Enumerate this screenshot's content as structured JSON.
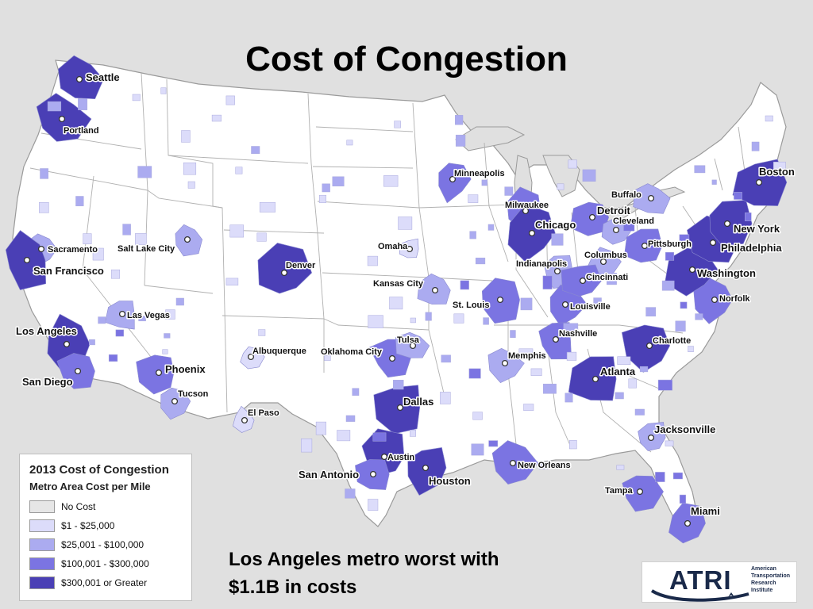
{
  "slide": {
    "title": "Cost of Congestion"
  },
  "caption": {
    "line1": "Los Angeles metro worst with",
    "line2": "$1.1B in costs"
  },
  "legend": {
    "title": "2013 Cost of Congestion",
    "subtitle": "Metro Area Cost per Mile",
    "items": [
      {
        "label": "No Cost",
        "color": "#e6e6e6"
      },
      {
        "label": "$1 - $25,000",
        "color": "#dcdcfa"
      },
      {
        "label": "$25,001 - $100,000",
        "color": "#ababf0"
      },
      {
        "label": "$100,001 - $300,000",
        "color": "#7b74e2"
      },
      {
        "label": "$300,001 or Greater",
        "color": "#4a3fb5"
      }
    ]
  },
  "logo": {
    "text": "ATRI",
    "lines": [
      "American",
      "Transportation",
      "Research",
      "Institute"
    ]
  },
  "cities": [
    {
      "name": "Seattle",
      "tier": 4
    },
    {
      "name": "Portland",
      "tier": 4
    },
    {
      "name": "Sacramento",
      "tier": 2
    },
    {
      "name": "San Francisco",
      "tier": 4
    },
    {
      "name": "Los Angeles",
      "tier": 4
    },
    {
      "name": "San Diego",
      "tier": 3
    },
    {
      "name": "Las Vegas",
      "tier": 2
    },
    {
      "name": "Salt Lake City",
      "tier": 2
    },
    {
      "name": "Phoenix",
      "tier": 3
    },
    {
      "name": "Tucson",
      "tier": 2
    },
    {
      "name": "Denver",
      "tier": 4
    },
    {
      "name": "Albuquerque",
      "tier": 1
    },
    {
      "name": "El Paso",
      "tier": 1
    },
    {
      "name": "Oklahoma City",
      "tier": 3
    },
    {
      "name": "Tulsa",
      "tier": 2
    },
    {
      "name": "Dallas",
      "tier": 4
    },
    {
      "name": "Austin",
      "tier": 4
    },
    {
      "name": "San Antonio",
      "tier": 3
    },
    {
      "name": "Houston",
      "tier": 4
    },
    {
      "name": "Omaha",
      "tier": 1
    },
    {
      "name": "Kansas City",
      "tier": 2
    },
    {
      "name": "Minneapolis",
      "tier": 3
    },
    {
      "name": "Milwaukee",
      "tier": 3
    },
    {
      "name": "Chicago",
      "tier": 4
    },
    {
      "name": "St. Louis",
      "tier": 3
    },
    {
      "name": "Memphis",
      "tier": 2
    },
    {
      "name": "New Orleans",
      "tier": 3
    },
    {
      "name": "Indianapolis",
      "tier": 2
    },
    {
      "name": "Louisville",
      "tier": 3
    },
    {
      "name": "Nashville",
      "tier": 3
    },
    {
      "name": "Atlanta",
      "tier": 4
    },
    {
      "name": "Detroit",
      "tier": 3
    },
    {
      "name": "Cleveland",
      "tier": 2
    },
    {
      "name": "Columbus",
      "tier": 2
    },
    {
      "name": "Cincinnati",
      "tier": 3
    },
    {
      "name": "Pittsburgh",
      "tier": 3
    },
    {
      "name": "Buffalo",
      "tier": 2
    },
    {
      "name": "Charlotte",
      "tier": 4
    },
    {
      "name": "Norfolk",
      "tier": 3
    },
    {
      "name": "Washington",
      "tier": 4
    },
    {
      "name": "Philadelphia",
      "tier": 4
    },
    {
      "name": "New York",
      "tier": 4
    },
    {
      "name": "Boston",
      "tier": 4
    },
    {
      "name": "Jacksonville",
      "tier": 2
    },
    {
      "name": "Tampa",
      "tier": 3
    },
    {
      "name": "Miami",
      "tier": 3
    }
  ]
}
